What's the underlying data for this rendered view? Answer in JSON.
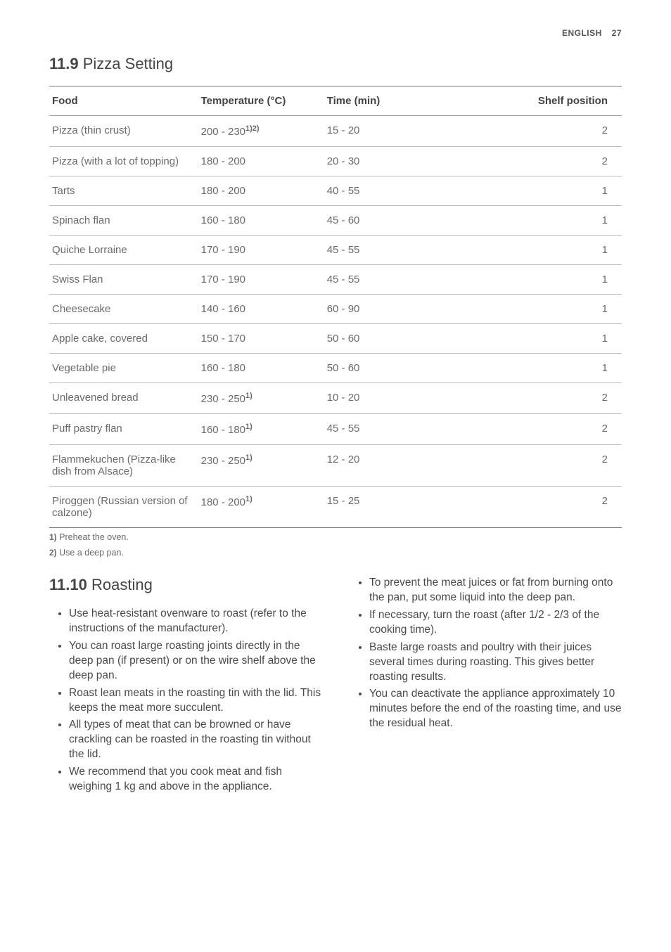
{
  "header": {
    "lang": "ENGLISH",
    "page": "27"
  },
  "section1": {
    "num": "11.9",
    "title": "Pizza Setting"
  },
  "table": {
    "headers": {
      "food": "Food",
      "temp": "Temperature (°C)",
      "time": "Time (min)",
      "shelf": "Shelf position"
    },
    "rows": [
      {
        "food": "Pizza (thin crust)",
        "temp": "200 - 230",
        "sup": "1)2)",
        "time": "15 - 20",
        "shelf": "2"
      },
      {
        "food": "Pizza (with a lot of topping)",
        "temp": "180 - 200",
        "sup": "",
        "time": "20 - 30",
        "shelf": "2"
      },
      {
        "food": "Tarts",
        "temp": "180 - 200",
        "sup": "",
        "time": "40 - 55",
        "shelf": "1"
      },
      {
        "food": "Spinach flan",
        "temp": "160 - 180",
        "sup": "",
        "time": "45 - 60",
        "shelf": "1"
      },
      {
        "food": "Quiche Lorraine",
        "temp": "170 - 190",
        "sup": "",
        "time": "45 - 55",
        "shelf": "1"
      },
      {
        "food": "Swiss Flan",
        "temp": "170 - 190",
        "sup": "",
        "time": "45 - 55",
        "shelf": "1"
      },
      {
        "food": "Cheesecake",
        "temp": "140 - 160",
        "sup": "",
        "time": "60 - 90",
        "shelf": "1"
      },
      {
        "food": "Apple cake, covered",
        "temp": "150 - 170",
        "sup": "",
        "time": "50 - 60",
        "shelf": "1"
      },
      {
        "food": "Vegetable pie",
        "temp": "160 - 180",
        "sup": "",
        "time": "50 - 60",
        "shelf": "1"
      },
      {
        "food": "Unleavened bread",
        "temp": "230 - 250",
        "sup": "1)",
        "time": "10 - 20",
        "shelf": "2"
      },
      {
        "food": "Puff pastry flan",
        "temp": "160 - 180",
        "sup": "1)",
        "time": "45 - 55",
        "shelf": "2"
      },
      {
        "food": "Flammekuchen (Pizza-like dish from Alsace)",
        "temp": "230 - 250",
        "sup": "1)",
        "time": "12 - 20",
        "shelf": "2"
      },
      {
        "food": "Piroggen (Russian version of calzone)",
        "temp": "180 - 200",
        "sup": "1)",
        "time": "15 - 25",
        "shelf": "2"
      }
    ]
  },
  "footnotes": {
    "f1": {
      "num": "1)",
      "text": " Preheat the oven."
    },
    "f2": {
      "num": "2)",
      "text": " Use a deep pan."
    }
  },
  "section2": {
    "num": "11.10",
    "title": "Roasting"
  },
  "bullets_left": [
    "Use heat-resistant ovenware to roast (refer to the instructions of the manufacturer).",
    "You can roast large roasting joints directly in the deep pan (if present) or on the wire shelf above the deep pan.",
    "Roast lean meats in the roasting tin with the lid. This keeps the meat more succulent.",
    "All types of meat that can be browned or have crackling can be roasted in the roasting tin without the lid.",
    "We recommend that you cook meat and fish weighing 1 kg and above in the appliance."
  ],
  "bullets_right": [
    "To prevent the meat juices or fat from burning onto the pan, put some liquid into the deep pan.",
    "If necessary, turn the roast (after 1/2 - 2/3 of the cooking time).",
    "Baste large roasts and poultry with their juices several times during roasting. This gives better roasting results.",
    "You can deactivate the appliance approximately 10 minutes before the end of the roasting time, and use the residual heat."
  ]
}
